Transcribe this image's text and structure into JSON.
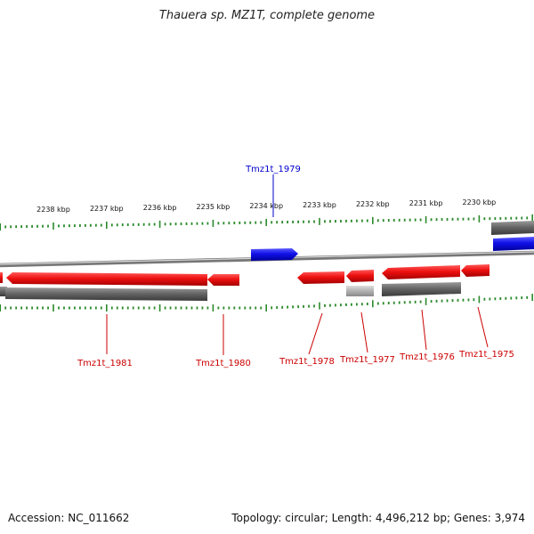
{
  "title": "Thauera sp. MZ1T, complete genome",
  "footer": {
    "accession_label": "Accession:",
    "accession": "NC_011662",
    "topology_label": "Topology:",
    "topology": "circular",
    "length_label": "Length:",
    "length": "4,496,212 bp",
    "genes_label": "Genes:",
    "genes": "3,974"
  },
  "ticks": [
    {
      "label": "2238 kbp",
      "kbp": 2238
    },
    {
      "label": "2237 kbp",
      "kbp": 2237
    },
    {
      "label": "2236 kbp",
      "kbp": 2236
    },
    {
      "label": "2235 kbp",
      "kbp": 2235
    },
    {
      "label": "2234 kbp",
      "kbp": 2234
    },
    {
      "label": "2233 kbp",
      "kbp": 2233
    },
    {
      "label": "2232 kbp",
      "kbp": 2232
    },
    {
      "label": "2231 kbp",
      "kbp": 2231
    },
    {
      "label": "2230 kbp",
      "kbp": 2230
    }
  ],
  "genes": [
    {
      "name": "Tmz1t_1979",
      "strand": "forward",
      "color": "#1010e8"
    },
    {
      "name": "Tmz1t_1981",
      "strand": "reverse",
      "color": "#ee1111"
    },
    {
      "name": "Tmz1t_1980",
      "strand": "reverse",
      "color": "#ee1111"
    },
    {
      "name": "Tmz1t_1978",
      "strand": "reverse",
      "color": "#ee1111"
    },
    {
      "name": "Tmz1t_1977",
      "strand": "reverse",
      "color": "#ee1111"
    },
    {
      "name": "Tmz1t_1976",
      "strand": "reverse",
      "color": "#ee1111"
    },
    {
      "name": "Tmz1t_1975",
      "strand": "reverse",
      "color": "#ee1111"
    }
  ],
  "colors": {
    "forward_cds": "#1010e8",
    "reverse_cds": "#ee1111",
    "gene_bar": "#666666",
    "gene_bar_light": "#b5b5b5",
    "ticks": "#2a8a2a",
    "backbone": "#8a8a8a"
  }
}
